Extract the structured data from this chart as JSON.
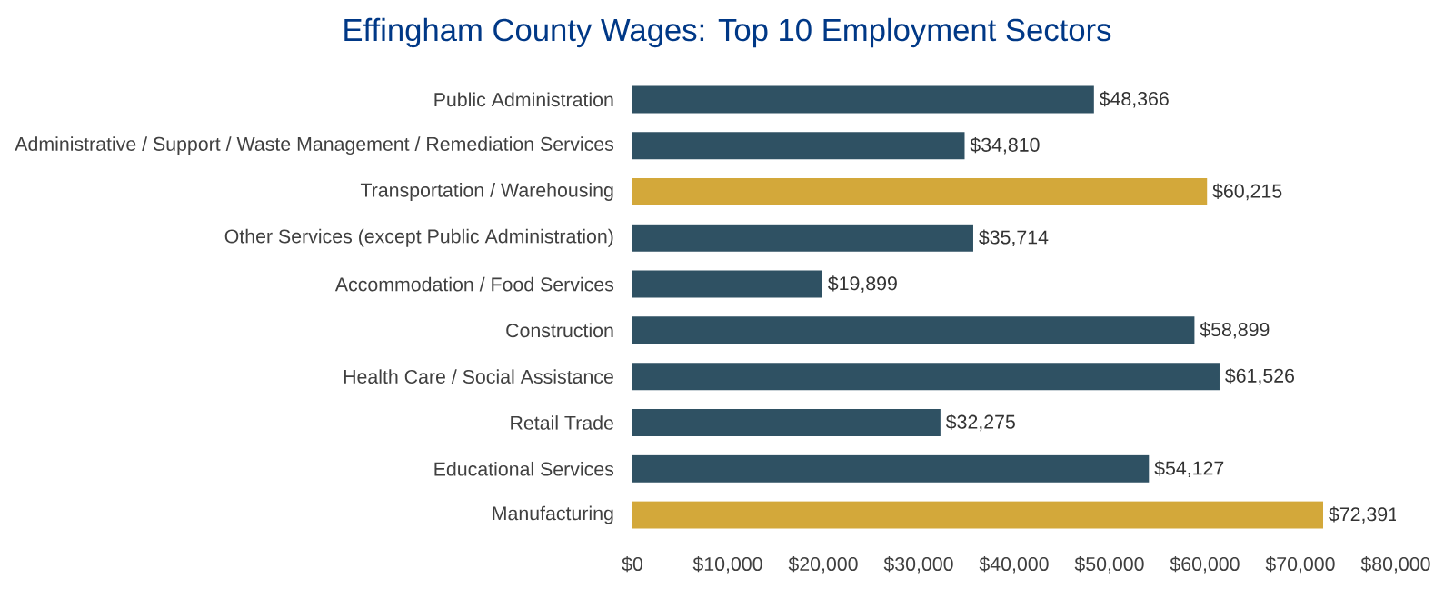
{
  "chart_data": {
    "type": "bar",
    "orientation": "horizontal",
    "title": "Effingham County Wages:  Top 10 Employment Sectors",
    "categories": [
      "Public Administration",
      "Administrative / Support / Waste Management / Remediation Services",
      "Transportation / Warehousing",
      "Other Services (except Public Administration)",
      "Accommodation / Food Services",
      "Construction",
      "Health Care / Social Assistance",
      "Retail Trade",
      "Educational Services",
      "Manufacturing"
    ],
    "values": [
      48366,
      34810,
      60215,
      35714,
      19899,
      58899,
      61526,
      32275,
      54127,
      72391
    ],
    "colors": [
      "#2f5163",
      "#2f5163",
      "#d3a83a",
      "#2f5163",
      "#2f5163",
      "#2f5163",
      "#2f5163",
      "#2f5163",
      "#2f5163",
      "#d3a83a"
    ],
    "value_labels": [
      "$48,366",
      "$34,810",
      "$60,215",
      "$35,714",
      "$19,899",
      "$58,899",
      "$61,526",
      "$32,275",
      "$54,127",
      "$72,391"
    ],
    "xlim": [
      0,
      80000
    ],
    "xticks": [
      {
        "value": 0,
        "label": "$0"
      },
      {
        "value": 10000,
        "label": "$10,000"
      },
      {
        "value": 20000,
        "label": "$20,000"
      },
      {
        "value": 30000,
        "label": "$30,000"
      },
      {
        "value": 40000,
        "label": "$40,000"
      },
      {
        "value": 50000,
        "label": "$50,000"
      },
      {
        "value": 60000,
        "label": "$60,000"
      },
      {
        "value": 70000,
        "label": "$70,000"
      },
      {
        "value": 80000,
        "label": "$80,000"
      }
    ],
    "grid": false
  }
}
